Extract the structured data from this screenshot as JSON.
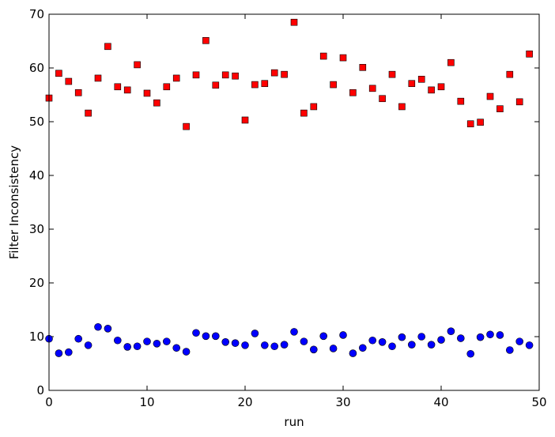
{
  "chart_data": {
    "type": "scatter",
    "x_label": "run",
    "y_label": "Filter Inconsistency",
    "x": [
      0,
      1,
      2,
      3,
      4,
      5,
      6,
      7,
      8,
      9,
      10,
      11,
      12,
      13,
      14,
      15,
      16,
      17,
      18,
      19,
      20,
      21,
      22,
      23,
      24,
      25,
      26,
      27,
      28,
      29,
      30,
      31,
      32,
      33,
      34,
      35,
      36,
      37,
      38,
      39,
      40,
      41,
      42,
      43,
      44,
      45,
      46,
      47,
      48,
      49
    ],
    "series": [
      {
        "color": "#ff0000",
        "marker": "square",
        "values": [
          54.4,
          59.0,
          57.5,
          55.4,
          51.6,
          58.1,
          64.0,
          56.5,
          55.9,
          60.6,
          55.3,
          53.5,
          56.5,
          58.1,
          49.1,
          58.7,
          65.1,
          56.8,
          58.7,
          58.5,
          50.3,
          56.9,
          57.1,
          59.1,
          58.8,
          68.5,
          51.6,
          52.8,
          62.2,
          56.9,
          61.9,
          55.4,
          60.1,
          56.2,
          54.3,
          58.8,
          52.8,
          57.1,
          57.9,
          55.9,
          56.5,
          61.0,
          53.8,
          49.6,
          49.9,
          54.7,
          52.4,
          58.8,
          53.7,
          62.6
        ]
      },
      {
        "color": "#0000ff",
        "marker": "circle",
        "values": [
          9.6,
          6.9,
          7.1,
          9.6,
          8.4,
          11.8,
          11.5,
          9.3,
          8.1,
          8.2,
          9.1,
          8.7,
          9.1,
          7.9,
          7.2,
          10.7,
          10.1,
          10.1,
          9.0,
          8.8,
          8.4,
          10.6,
          8.4,
          8.2,
          8.5,
          10.9,
          9.1,
          7.6,
          10.1,
          7.8,
          10.3,
          6.9,
          7.9,
          9.3,
          9.0,
          8.2,
          9.9,
          8.5,
          10.0,
          8.5,
          9.4,
          11.0,
          9.7,
          6.8,
          9.9,
          10.4,
          10.3,
          7.5,
          9.1,
          8.4
        ]
      }
    ],
    "xlim": [
      0,
      50
    ],
    "xticks": [
      0,
      10,
      20,
      30,
      40,
      50
    ],
    "ylim": [
      0,
      70
    ],
    "yticks": [
      0,
      10,
      20,
      30,
      40,
      50,
      60,
      70
    ],
    "grid": false
  }
}
